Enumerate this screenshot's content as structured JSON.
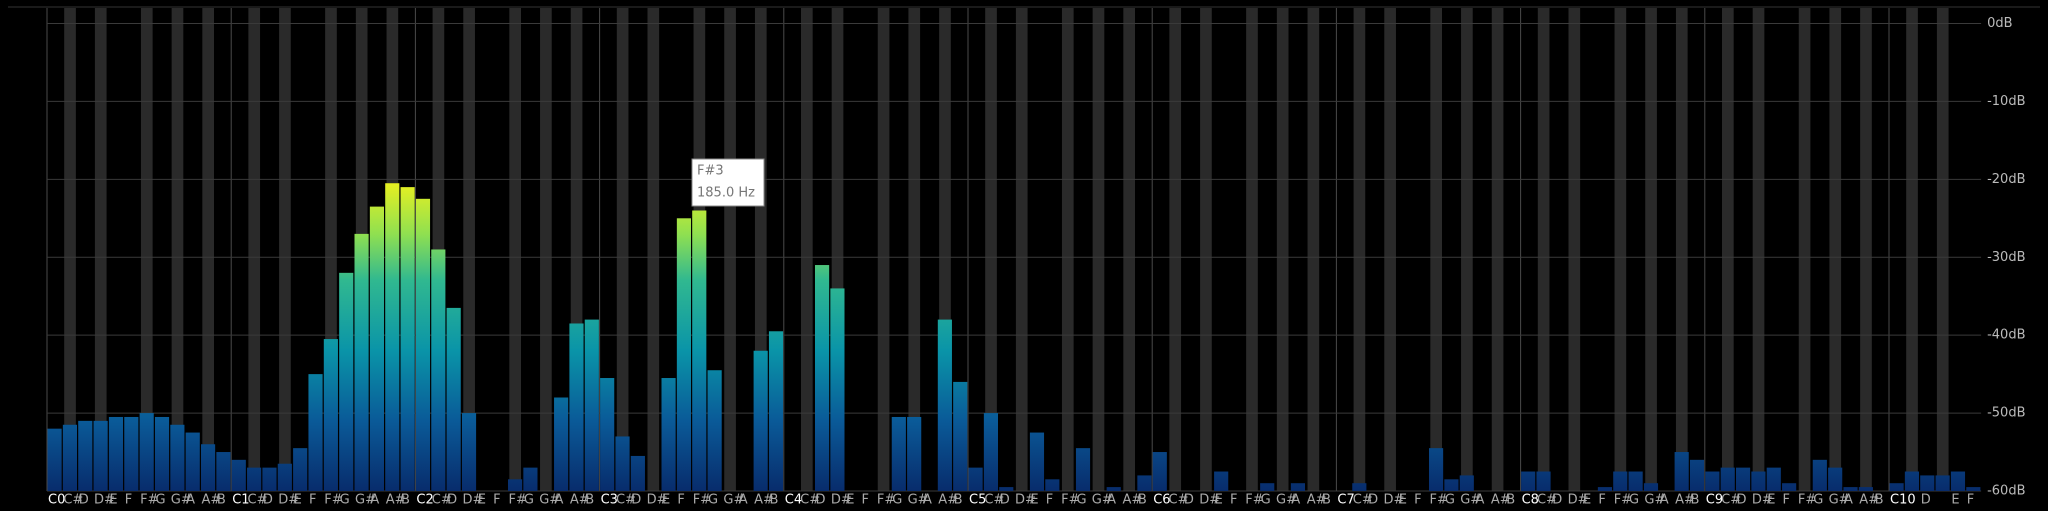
{
  "chart_data": {
    "type": "bar",
    "categories": [
      "C0",
      "C#",
      "D",
      "D#",
      "E",
      "F",
      "F#",
      "G",
      "G#",
      "A",
      "A#",
      "B",
      "C1",
      "C#",
      "D",
      "D#",
      "E",
      "F",
      "F#",
      "G",
      "G#",
      "A",
      "A#",
      "B",
      "C2",
      "C#",
      "D",
      "D#",
      "E",
      "F",
      "F#",
      "G",
      "G#",
      "A",
      "A#",
      "B",
      "C3",
      "C#",
      "D",
      "D#",
      "E",
      "F",
      "F#",
      "G",
      "G#",
      "A",
      "A#",
      "B",
      "C4",
      "C#",
      "D",
      "D#",
      "E",
      "F",
      "F#",
      "G",
      "G#",
      "A",
      "A#",
      "B",
      "C5",
      "C#",
      "D",
      "D#",
      "E",
      "F",
      "F#",
      "G",
      "G#",
      "A",
      "A#",
      "B",
      "C6",
      "C#",
      "D",
      "D#",
      "E",
      "F",
      "F#",
      "G",
      "G#",
      "A",
      "A#",
      "B",
      "C7",
      "C#",
      "D",
      "D#",
      "E",
      "F",
      "F#",
      "G",
      "G#",
      "A",
      "A#",
      "B",
      "C8",
      "C#",
      "D",
      "D#",
      "E",
      "F",
      "F#",
      "G",
      "G#",
      "A",
      "A#",
      "B",
      "C9",
      "C#",
      "D",
      "D#",
      "E",
      "F",
      "F#",
      "G",
      "G#",
      "A",
      "A#",
      "B",
      "C10",
      null,
      "D",
      null,
      "E",
      "F"
    ],
    "values": [
      -52,
      -51.5,
      -51,
      -51,
      -50.5,
      -50.5,
      -50,
      -50.5,
      -51.5,
      -52.5,
      -54,
      -55,
      -56,
      -57,
      -57,
      -56.5,
      -54.5,
      -45,
      -40.5,
      -32,
      -27,
      -23.5,
      -20.5,
      -21,
      -22.5,
      -29,
      -36.5,
      -50,
      -60,
      -60,
      -58.5,
      -57,
      -60,
      -48,
      -38.5,
      -38,
      -45.5,
      -53,
      -55.5,
      -60,
      -45.5,
      -25,
      -24,
      -44.5,
      -60,
      -60,
      -42,
      -39.5,
      -60,
      -60,
      -31,
      -34,
      -60,
      -60,
      -60,
      -50.5,
      -50.5,
      -60,
      -38,
      -46,
      -57,
      -50,
      -59.5,
      -60,
      -52.5,
      -58.5,
      -60,
      -54.5,
      -60,
      -59.5,
      -60,
      -58,
      -55,
      -60,
      -60,
      -60,
      -57.5,
      -60,
      -60,
      -59,
      -60,
      -59,
      -60,
      -60,
      -60,
      -59,
      -60,
      -60,
      -60,
      -60,
      -54.5,
      -58.5,
      -58,
      -60,
      -60,
      -60,
      -57.5,
      -57.5,
      -60,
      -60,
      -60,
      -59.5,
      -57.5,
      -57.5,
      -59,
      -60,
      -55,
      -56,
      -57.5,
      -57,
      -57,
      -57.5,
      -57,
      -59,
      -60,
      -56,
      -57,
      -59.5,
      -59.5,
      -60,
      -59,
      -57.5,
      -58,
      -58,
      -57.5,
      -59.5
    ],
    "ylim": [
      -60,
      0
    ],
    "yticks": [
      {
        "value": 0,
        "label": "0dB"
      },
      {
        "value": -10,
        "label": "-10dB"
      },
      {
        "value": -20,
        "label": "-20dB"
      },
      {
        "value": -30,
        "label": "-30dB"
      },
      {
        "value": -40,
        "label": "-40dB"
      },
      {
        "value": -50,
        "label": "-50dB"
      },
      {
        "value": -60,
        "label": "-60dB"
      }
    ],
    "grid": true,
    "tooltip": {
      "note": "F#3",
      "frequency": "185.0 Hz"
    }
  }
}
